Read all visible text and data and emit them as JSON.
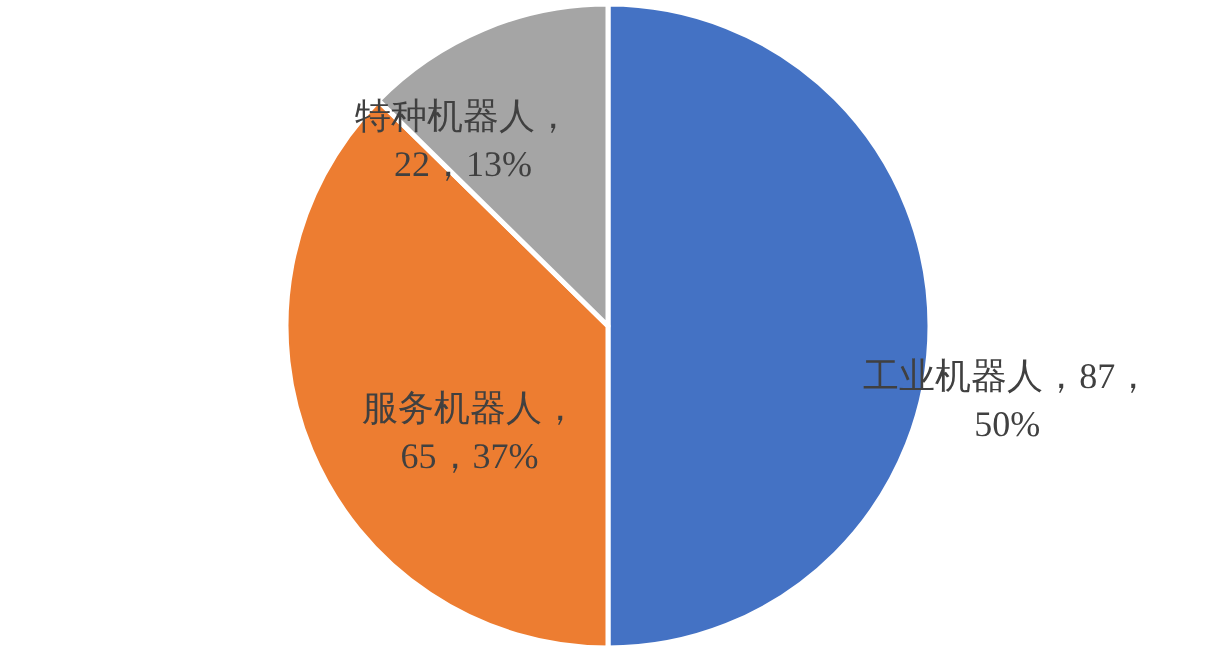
{
  "chart_data": {
    "type": "pie",
    "categories": [
      "工业机器人",
      "服务机器人",
      "特种机器人"
    ],
    "values": [
      87,
      65,
      22
    ],
    "value_labels": [
      "，87，50%",
      "，65，37%",
      "，22，13%"
    ],
    "colors": [
      "#4472c4",
      "#ed7d31",
      "#a5a5a5"
    ]
  }
}
